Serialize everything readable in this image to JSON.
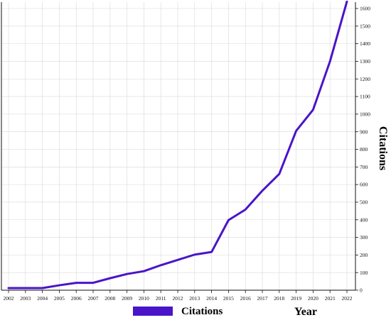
{
  "chart_data": {
    "type": "line",
    "title": "",
    "xlabel": "Year",
    "ylabel": "Citations",
    "x": [
      "2002",
      "2003",
      "2004",
      "2005",
      "2006",
      "2007",
      "2008",
      "2009",
      "2010",
      "2011",
      "2012",
      "2013",
      "2014",
      "2015",
      "2016",
      "2017",
      "2018",
      "2019",
      "2020",
      "2021",
      "2022"
    ],
    "series": [
      {
        "name": "Citations",
        "color": "#4a14c8",
        "values": [
          12,
          12,
          12,
          28,
          42,
          42,
          68,
          92,
          108,
          142,
          172,
          202,
          217,
          398,
          458,
          565,
          660,
          905,
          1025,
          1300,
          1640
        ]
      }
    ],
    "ylim": [
      0,
      1600
    ],
    "yticks": [
      0,
      100,
      200,
      300,
      400,
      500,
      600,
      700,
      800,
      900,
      1000,
      1100,
      1200,
      1300,
      1400,
      1500,
      1600
    ],
    "y_axis_side": "right",
    "grid": true,
    "legend": "bottom-center"
  }
}
